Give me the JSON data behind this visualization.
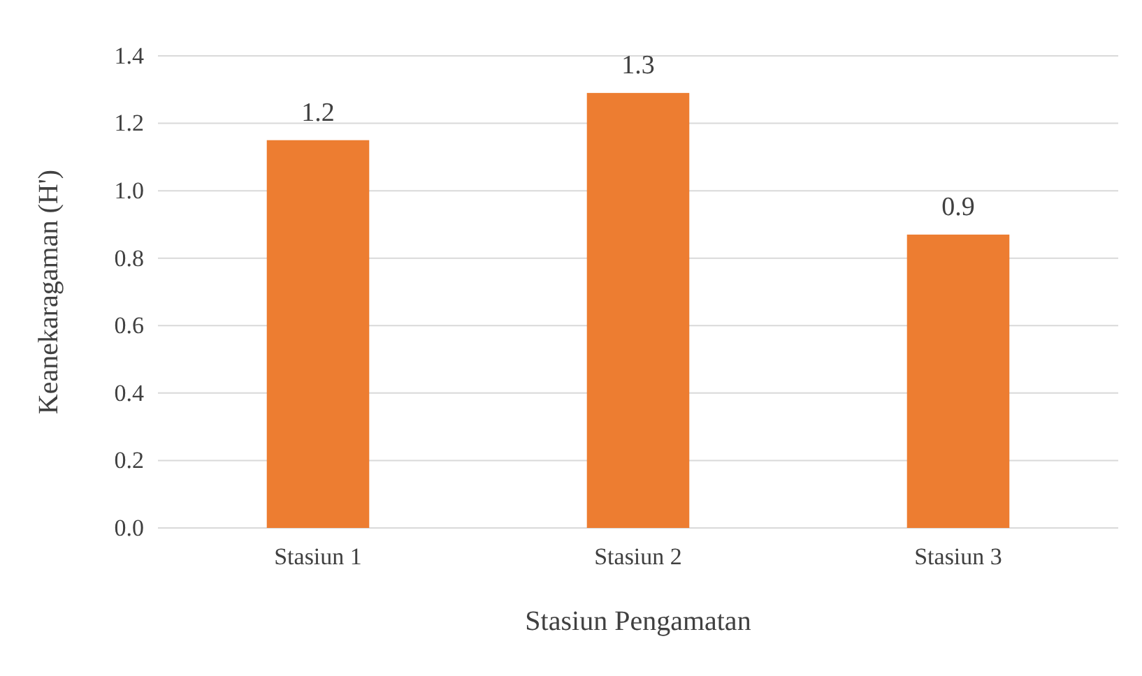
{
  "chart_data": {
    "type": "bar",
    "xlabel": "Stasiun Pengamatan",
    "ylabel": "Keanekaragaman (H')",
    "categories": [
      "Stasiun 1",
      "Stasiun 2",
      "Stasiun 3"
    ],
    "values": [
      1.15,
      1.29,
      0.87
    ],
    "color": "#ed7d31",
    "value_labels": [
      "1.2",
      "1.3",
      "0.9"
    ],
    "ylim": [
      0,
      1.4
    ],
    "yticks": [
      {
        "value": 0,
        "label": "0.0"
      },
      {
        "value": 0.2,
        "label": "0.2"
      },
      {
        "value": 0.4,
        "label": "0.4"
      },
      {
        "value": 0.6,
        "label": "0.6"
      },
      {
        "value": 0.8,
        "label": "0.8"
      },
      {
        "value": 1,
        "label": "1.0"
      },
      {
        "value": 1.2,
        "label": "1.2"
      },
      {
        "value": 1.4,
        "label": "1.4"
      }
    ],
    "grid": "y"
  }
}
